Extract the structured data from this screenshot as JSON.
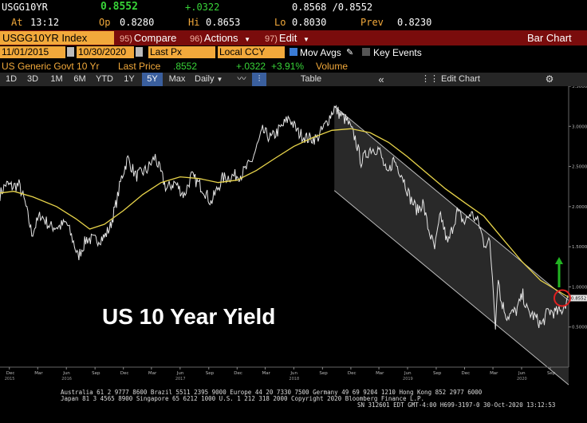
{
  "quote": {
    "ticker": "USGG10YR",
    "last": "0.8552",
    "change": "+.0322",
    "bid_ask": "0.8568 /0.8552",
    "time_label": "At",
    "time": "13:12",
    "open_label": "Op",
    "open": "0.8280",
    "high_label": "Hi",
    "high": "0.8653",
    "low_label": "Lo",
    "low": "0.8030",
    "prev_label": "Prev",
    "prev": "0.8230"
  },
  "toolbar": {
    "security": "USGG10YR Index",
    "compare_num": "95)",
    "compare_label": "Compare",
    "actions_num": "96)",
    "actions_label": "Actions",
    "edit_num": "97)",
    "edit_label": "Edit",
    "chart_type": "Bar Chart"
  },
  "settings": {
    "start_date": "11/01/2015",
    "end_date": "10/30/2020",
    "price_field": "Last Px",
    "currency": "Local CCY",
    "mov_avgs_label": "Mov Avgs",
    "key_events_label": "Key Events"
  },
  "legend": {
    "name": "US Generic Govt 10 Yr",
    "last_price_label": "Last Price",
    "last_price": ".8552",
    "change": "+.0322",
    "change_pct": "+3.91%",
    "volume_label": "Volume"
  },
  "tabs": {
    "periods": [
      "1D",
      "3D",
      "1M",
      "6M",
      "YTD",
      "1Y",
      "5Y",
      "Max"
    ],
    "selected": "5Y",
    "frequency": "Daily",
    "table_label": "Table",
    "edit_chart_label": "Edit Chart"
  },
  "annotation": "US 10 Year Yield",
  "colors": {
    "price": "#e6e6e6",
    "moving_average": "#e8d44a",
    "channel": "#2d2d2d",
    "arrow": "#22b422",
    "circle": "#e02020",
    "toolbar": "#7a0c0c",
    "input": "#f2a93b",
    "positive": "#38d438"
  },
  "chart_data": {
    "type": "line",
    "title": "",
    "xlabel": "",
    "ylabel": "",
    "ylim": [
      0.0,
      3.5
    ],
    "yticks": [
      0.5,
      1.0,
      1.5,
      2.0,
      2.5,
      3.0,
      3.5
    ],
    "ytick_labels": [
      "0.5000",
      "1.0000",
      "1.5000",
      "2.0000",
      "2.5000",
      "3.0000",
      "3.5000"
    ],
    "last_value_label": "0.8552",
    "xlim": [
      "2015-11-01",
      "2020-10-30"
    ],
    "x_ticks": [
      {
        "date": "2015-12-01",
        "label": "Dec",
        "year": "2015"
      },
      {
        "date": "2016-03-01",
        "label": "Mar",
        "year": ""
      },
      {
        "date": "2016-06-01",
        "label": "Jun",
        "year": "2016"
      },
      {
        "date": "2016-09-01",
        "label": "Sep",
        "year": ""
      },
      {
        "date": "2016-12-01",
        "label": "Dec",
        "year": ""
      },
      {
        "date": "2017-03-01",
        "label": "Mar",
        "year": ""
      },
      {
        "date": "2017-06-01",
        "label": "Jun",
        "year": "2017"
      },
      {
        "date": "2017-09-01",
        "label": "Sep",
        "year": ""
      },
      {
        "date": "2017-12-01",
        "label": "Dec",
        "year": ""
      },
      {
        "date": "2018-03-01",
        "label": "Mar",
        "year": ""
      },
      {
        "date": "2018-06-01",
        "label": "Jun",
        "year": "2018"
      },
      {
        "date": "2018-09-01",
        "label": "Sep",
        "year": ""
      },
      {
        "date": "2018-12-01",
        "label": "Dec",
        "year": ""
      },
      {
        "date": "2019-03-01",
        "label": "Mar",
        "year": ""
      },
      {
        "date": "2019-06-01",
        "label": "Jun",
        "year": "2019"
      },
      {
        "date": "2019-09-01",
        "label": "Sep",
        "year": ""
      },
      {
        "date": "2019-12-01",
        "label": "Dec",
        "year": ""
      },
      {
        "date": "2020-03-01",
        "label": "Mar",
        "year": ""
      },
      {
        "date": "2020-06-01",
        "label": "Jun",
        "year": "2020"
      },
      {
        "date": "2020-09-01",
        "label": "Sep",
        "year": ""
      }
    ],
    "series": [
      {
        "name": "US Generic Govt 10 Yr",
        "x": [
          "2015-11-01",
          "2015-11-20",
          "2015-12-10",
          "2016-01-01",
          "2016-01-20",
          "2016-02-11",
          "2016-03-10",
          "2016-04-10",
          "2016-05-10",
          "2016-06-01",
          "2016-06-24",
          "2016-07-08",
          "2016-08-05",
          "2016-09-01",
          "2016-10-01",
          "2016-10-20",
          "2016-11-09",
          "2016-11-25",
          "2016-12-15",
          "2017-01-10",
          "2017-02-15",
          "2017-03-13",
          "2017-04-18",
          "2017-05-15",
          "2017-06-14",
          "2017-07-07",
          "2017-08-15",
          "2017-09-08",
          "2017-10-15",
          "2017-11-15",
          "2017-12-15",
          "2018-01-15",
          "2018-02-21",
          "2018-03-20",
          "2018-04-25",
          "2018-05-17",
          "2018-06-15",
          "2018-07-15",
          "2018-08-15",
          "2018-09-15",
          "2018-10-09",
          "2018-10-30",
          "2018-11-20",
          "2018-12-15",
          "2019-01-03",
          "2019-02-01",
          "2019-03-01",
          "2019-03-28",
          "2019-04-17",
          "2019-05-15",
          "2019-06-10",
          "2019-07-03",
          "2019-07-20",
          "2019-08-05",
          "2019-08-27",
          "2019-09-15",
          "2019-10-08",
          "2019-11-07",
          "2019-12-01",
          "2019-12-20",
          "2020-01-15",
          "2020-02-01",
          "2020-02-20",
          "2020-03-02",
          "2020-03-09",
          "2020-03-18",
          "2020-03-25",
          "2020-04-15",
          "2020-05-15",
          "2020-06-05",
          "2020-06-20",
          "2020-07-15",
          "2020-08-04",
          "2020-08-25",
          "2020-09-15",
          "2020-10-05",
          "2020-10-20",
          "2020-10-30"
        ],
        "values": [
          2.15,
          2.28,
          2.25,
          2.27,
          2.05,
          1.66,
          1.9,
          1.75,
          1.75,
          1.8,
          1.56,
          1.37,
          1.6,
          1.58,
          1.62,
          1.75,
          2.06,
          2.36,
          2.6,
          2.38,
          2.46,
          2.62,
          2.22,
          2.3,
          2.14,
          2.38,
          2.22,
          2.05,
          2.35,
          2.38,
          2.4,
          2.55,
          2.94,
          2.85,
          3.0,
          3.11,
          2.92,
          2.85,
          2.85,
          3.05,
          3.23,
          3.14,
          3.06,
          2.85,
          2.56,
          2.72,
          2.72,
          2.38,
          2.59,
          2.39,
          2.1,
          1.95,
          2.05,
          1.75,
          1.47,
          1.9,
          1.53,
          1.94,
          1.8,
          1.92,
          1.8,
          1.55,
          1.55,
          1.0,
          0.54,
          1.15,
          0.85,
          0.63,
          0.7,
          0.9,
          0.69,
          0.62,
          0.52,
          0.7,
          0.68,
          0.69,
          0.8,
          0.86
        ]
      },
      {
        "name": "Moving Average",
        "x": [
          "2015-11-01",
          "2015-12-15",
          "2016-02-15",
          "2016-05-01",
          "2016-07-01",
          "2016-08-15",
          "2016-10-01",
          "2016-12-01",
          "2017-02-01",
          "2017-04-01",
          "2017-06-01",
          "2017-08-01",
          "2017-10-01",
          "2017-12-01",
          "2018-02-01",
          "2018-04-01",
          "2018-06-01",
          "2018-08-01",
          "2018-10-01",
          "2018-12-01",
          "2019-02-01",
          "2019-04-01",
          "2019-06-01",
          "2019-08-01",
          "2019-10-01",
          "2019-12-01",
          "2020-02-01",
          "2020-04-01",
          "2020-06-01",
          "2020-08-01",
          "2020-10-30"
        ],
        "values": [
          2.17,
          2.19,
          2.12,
          2.0,
          1.85,
          1.72,
          1.78,
          1.95,
          2.15,
          2.3,
          2.37,
          2.35,
          2.3,
          2.33,
          2.45,
          2.6,
          2.75,
          2.86,
          2.95,
          2.97,
          2.92,
          2.8,
          2.62,
          2.42,
          2.22,
          2.05,
          1.88,
          1.6,
          1.32,
          1.08,
          0.87
        ]
      }
    ],
    "channel": {
      "upper": [
        {
          "x": "2018-10-09",
          "y": 3.25
        },
        {
          "x": "2020-10-30",
          "y": 0.83
        }
      ],
      "lower": [
        {
          "x": "2018-10-09",
          "y": 2.2
        },
        {
          "x": "2020-10-30",
          "y": -0.22
        }
      ]
    }
  },
  "footer": {
    "line1": "Australia 61 2 9777 8600 Brazil 5511 2395 9000 Europe 44 20 7330 7500 Germany 49 69 9204 1210 Hong Kong 852 2977 6000",
    "line2": "Japan 81 3 4565 8900        Singapore 65 6212 1000        U.S. 1 212 318 2000        Copyright 2020 Bloomberg Finance L.P.",
    "line3": "SN 312601 EDT  GMT-4:00 H699-3197-0 30-Oct-2020 13:12:53"
  }
}
